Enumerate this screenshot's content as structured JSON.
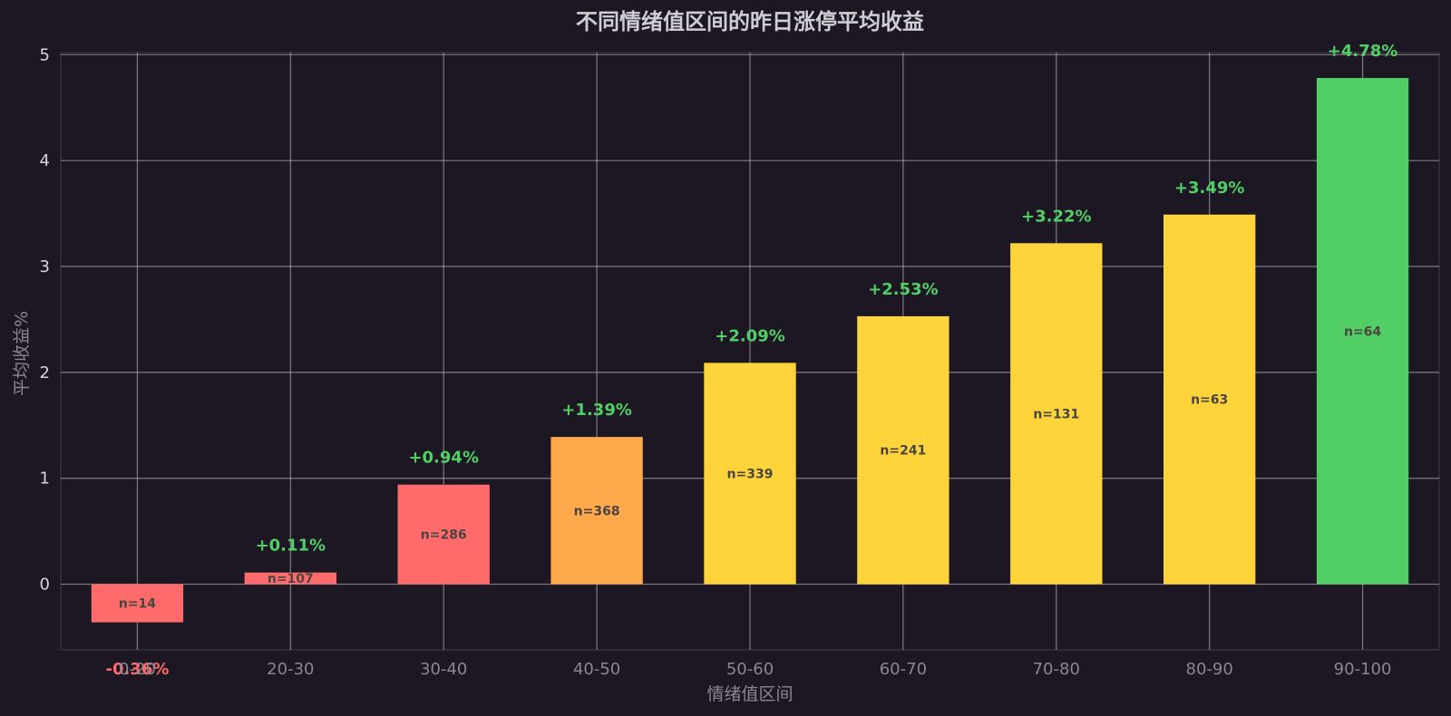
{
  "chart_data": {
    "type": "bar",
    "title": "不同情绪值区间的昨日涨停平均收益",
    "xlabel": "情绪值区间",
    "ylabel": "平均收益%",
    "categories": [
      "0-20",
      "20-30",
      "30-40",
      "40-50",
      "50-60",
      "60-70",
      "70-80",
      "80-90",
      "90-100"
    ],
    "values": [
      -0.36,
      0.11,
      0.94,
      1.39,
      2.09,
      2.53,
      3.22,
      3.49,
      4.78
    ],
    "value_labels": [
      "-0.36%",
      "+0.11%",
      "+0.94%",
      "+1.39%",
      "+2.09%",
      "+2.53%",
      "+3.22%",
      "+3.49%",
      "+4.78%"
    ],
    "counts": [
      "n=14",
      "n=107",
      "n=286",
      "n=368",
      "n=339",
      "n=241",
      "n=131",
      "n=63",
      "n=64"
    ],
    "bar_colors": [
      "#ff6b6b",
      "#ff6b6b",
      "#ff6b6b",
      "#ffa94d",
      "#ffd43b",
      "#ffd43b",
      "#ffd43b",
      "#ffd43b",
      "#51cf66"
    ],
    "label_colors": {
      "positive": "#51cf66",
      "negative": "#ff6b6b",
      "count": "#4a4540"
    },
    "ylim": [
      -0.62,
      5.02
    ],
    "yticks": [
      0,
      1,
      2,
      3,
      4,
      5
    ],
    "grid": true,
    "background": "#1c1722"
  }
}
